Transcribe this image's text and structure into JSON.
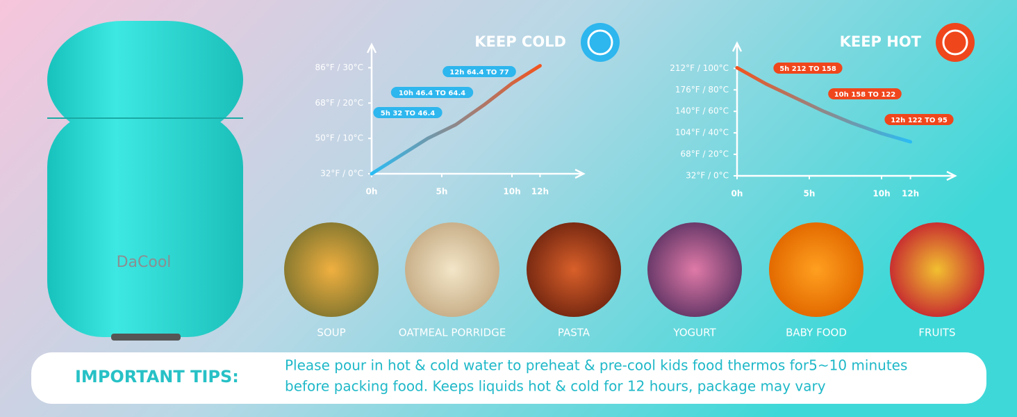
{
  "brand": "DaCool",
  "chart_data": [
    {
      "type": "line",
      "title": "KEEP COLD",
      "x": [
        0,
        2,
        4,
        6,
        8,
        10,
        12
      ],
      "series": [
        {
          "values": [
            32,
            41,
            50,
            57,
            67,
            78,
            87
          ],
          "colors": [
            "#2bbcf4",
            "#f2541f"
          ]
        }
      ],
      "xlim": [
        0,
        15
      ],
      "xticks": [
        {
          "value": 0,
          "label": "0h"
        },
        {
          "value": 5,
          "label": "5h"
        },
        {
          "value": 10,
          "label": "10h"
        },
        {
          "value": 12,
          "label": "12h"
        }
      ],
      "ylim": [
        32,
        95
      ],
      "yticks": [
        {
          "value": 32,
          "label": "32°F / 0°C"
        },
        {
          "value": 50,
          "label": "50°F / 10°C"
        },
        {
          "value": 68,
          "label": "68°F / 20°C"
        },
        {
          "value": 86,
          "label": "86°F / 30°C"
        }
      ],
      "annotation_color": "#2eb6ee",
      "annotations": [
        "12h 64.4 TO 77",
        "10h 46.4 TO 64.4",
        "5h 32 TO 46.4"
      ]
    },
    {
      "type": "line",
      "title": "KEEP HOT",
      "x": [
        0,
        2,
        4,
        6,
        8,
        10,
        12
      ],
      "series": [
        {
          "values": [
            213,
            186,
            163,
            140,
            120,
            103,
            89
          ],
          "colors": [
            "#f2541f",
            "#2bbcf4"
          ]
        }
      ],
      "xlim": [
        0,
        15
      ],
      "xticks": [
        {
          "value": 0,
          "label": "0h"
        },
        {
          "value": 5,
          "label": "5h"
        },
        {
          "value": 10,
          "label": "10h"
        },
        {
          "value": 12,
          "label": "12h"
        }
      ],
      "ylim": [
        32,
        245
      ],
      "yticks": [
        {
          "value": 32,
          "label": "32°F / 0°C"
        },
        {
          "value": 68,
          "label": "68°F / 20°C"
        },
        {
          "value": 104,
          "label": "104°F / 40°C"
        },
        {
          "value": 140,
          "label": "140°F / 60°C"
        },
        {
          "value": 176,
          "label": "176°F / 80°C"
        },
        {
          "value": 212,
          "label": "212°F / 100°C"
        }
      ],
      "annotation_color": "#f0461c",
      "annotations": [
        "5h 212 TO 158",
        "10h 158 TO 122",
        "12h 122 TO 95"
      ]
    }
  ],
  "foods": [
    "SOUP",
    "OATMEAL PORRIDGE",
    "PASTA",
    "YOGURT",
    "BABY FOOD",
    "FRUITS"
  ],
  "tips": {
    "title": "IMPORTANT TIPS:",
    "lines": [
      "Please pour in hot & cold water to preheat & pre-cool kids food thermos for5~10 minutes",
      "before packing food. Keeps liquids hot & cold for 12 hours, package may vary"
    ]
  }
}
